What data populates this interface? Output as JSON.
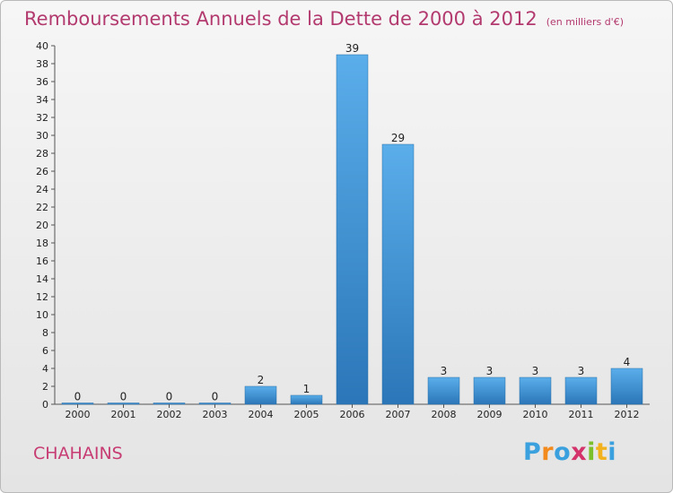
{
  "chart_data": {
    "type": "bar",
    "title": "Remboursements Annuels de la Dette de 2000 à 2012",
    "subtitle": "(en milliers d'€)",
    "categories": [
      "2000",
      "2001",
      "2002",
      "2003",
      "2004",
      "2005",
      "2006",
      "2007",
      "2008",
      "2009",
      "2010",
      "2011",
      "2012"
    ],
    "values": [
      0,
      0,
      0,
      0,
      2,
      1,
      39,
      29,
      3,
      3,
      3,
      3,
      4
    ],
    "ylim": [
      0,
      40
    ],
    "ytick_step": 2,
    "grid": false,
    "bar_color": "#3d8fd4"
  },
  "commune": "CHAHAINS",
  "logo": {
    "letters": [
      "P",
      "r",
      "o",
      "x",
      "i",
      "t",
      "i"
    ],
    "colors": [
      "#3aa0de",
      "#f28a1e",
      "#3aa0de",
      "#d4326b",
      "#7bbf2a",
      "#f2b21e",
      "#3aa0de"
    ]
  }
}
